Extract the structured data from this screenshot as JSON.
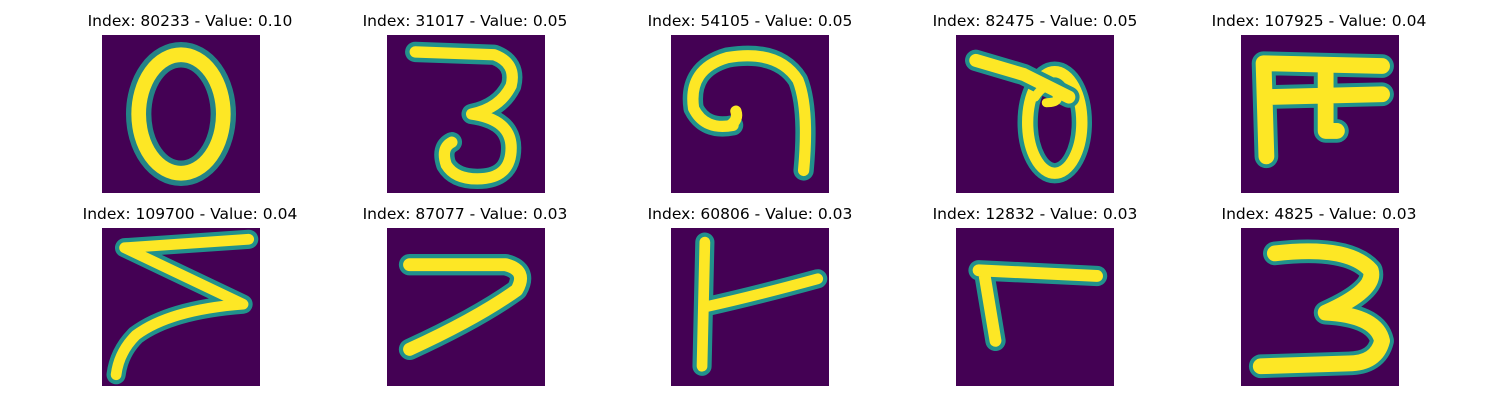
{
  "panels": [
    {
      "title": "Index: 80233 - Value: 0.10",
      "digit": "0"
    },
    {
      "title": "Index: 31017 - Value: 0.05",
      "digit": "3"
    },
    {
      "title": "Index: 54105 - Value: 0.05",
      "digit": "9"
    },
    {
      "title": "Index: 82475 - Value: 0.05",
      "digit": "8"
    },
    {
      "title": "Index: 107925 - Value: 0.04",
      "digit": "m-shape"
    },
    {
      "title": "Index: 109700 - Value: 0.04",
      "digit": "z-shape"
    },
    {
      "title": "Index: 87077 - Value: 0.03",
      "digit": "7"
    },
    {
      "title": "Index: 60806 - Value: 0.03",
      "digit": "t-shape"
    },
    {
      "title": "Index: 12832 - Value: 0.03",
      "digit": "7"
    },
    {
      "title": "Index: 4825 - Value: 0.03",
      "digit": "3"
    }
  ],
  "colors": {
    "background": "#440154",
    "stroke_core": "#fde725",
    "stroke_edge": "#21918c"
  }
}
